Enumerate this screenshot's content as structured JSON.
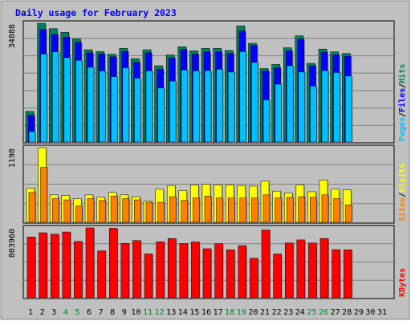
{
  "chart_data": {
    "type": "bar",
    "title": "Daily usage for February 2023",
    "categories": [
      "1",
      "2",
      "3",
      "4",
      "5",
      "6",
      "7",
      "8",
      "9",
      "10",
      "11",
      "12",
      "13",
      "14",
      "15",
      "16",
      "17",
      "18",
      "19",
      "20",
      "21",
      "22",
      "23",
      "24",
      "25",
      "26",
      "27",
      "28",
      "29",
      "30",
      "31"
    ],
    "weekend_days": [
      "4",
      "5",
      "11",
      "12",
      "18",
      "19",
      "25",
      "26"
    ],
    "panels": [
      {
        "id": "top",
        "ymax_label": "34888",
        "ymax": 34888,
        "legend": [
          "Pages",
          "/",
          "Files",
          "/",
          "Hits"
        ],
        "series": [
          {
            "name": "Hits",
            "values": [
              8990,
              34888,
              33300,
              32200,
              30300,
              27100,
              26600,
              25800,
              27500,
              24500,
              27100,
              22400,
              25600,
              28000,
              26800,
              27500,
              27500,
              26900,
              34100,
              29000,
              21600,
              22800,
              27700,
              31200,
              23100,
              27300,
              26500,
              26000,
              null,
              null,
              null
            ]
          },
          {
            "name": "Files",
            "values": [
              7850,
              33100,
              31600,
              30800,
              29300,
              26200,
              25900,
              25000,
              26600,
              23400,
              26200,
              21400,
              24700,
              27200,
              25800,
              26500,
              26500,
              26000,
              32600,
              28400,
              20900,
              21800,
              26800,
              30200,
              22400,
              26400,
              25600,
              25200,
              null,
              null,
              null
            ]
          },
          {
            "name": "Pages",
            "values": [
              3100,
              25900,
              26500,
              24800,
              24000,
              22000,
              20900,
              19200,
              21800,
              18800,
              20900,
              15900,
              17900,
              21200,
              20900,
              21000,
              21400,
              20600,
              26600,
              23400,
              12400,
              17000,
              22400,
              20600,
              16400,
              21000,
              20400,
              19400,
              null,
              null,
              null
            ]
          }
        ]
      },
      {
        "id": "mid",
        "ymax_label": "1198",
        "ymax": 1198,
        "legend": [
          "Sites",
          "/",
          "Visits"
        ],
        "series": [
          {
            "name": "Visits",
            "values": [
              550,
              1198,
              440,
              430,
              380,
              440,
              400,
              480,
              440,
              410,
              340,
              530,
              590,
              510,
              600,
              610,
              600,
              600,
              590,
              580,
              660,
              500,
              470,
              600,
              490,
              680,
              530,
              520,
              null,
              null,
              null
            ]
          },
          {
            "name": "Sites",
            "values": [
              480,
              880,
              380,
              360,
              260,
              380,
              350,
              420,
              380,
              360,
              320,
              320,
              410,
              350,
              390,
              420,
              390,
              390,
              390,
              390,
              440,
              390,
              400,
              410,
              400,
              440,
              380,
              280,
              null,
              null,
              null
            ]
          }
        ]
      },
      {
        "id": "bot",
        "ymax_label": "803960",
        "ymax": 803960,
        "legend": [
          "KBytes"
        ],
        "series": [
          {
            "name": "KBytes",
            "values": [
              700000,
              748000,
              732000,
              757000,
              648000,
              803960,
              540000,
              800000,
              626000,
              658000,
              505000,
              644000,
              682000,
              624000,
              642000,
              564000,
              622000,
              552000,
              600000,
              454000,
              780000,
              504000,
              630000,
              666000,
              630000,
              682000,
              554000,
              552000,
              null,
              null,
              null
            ]
          }
        ]
      }
    ],
    "colors": {
      "background": "#c0c0c0",
      "plot_bg": "#c0c0c0",
      "title_text": "#0000ff",
      "axis_text": "#000000",
      "weekend_text": "#008040",
      "hits": "#00805c",
      "files": "#0000ff",
      "pages": "#00c0ff",
      "visits": "#ffff00",
      "sites": "#ff8000",
      "kbytes": "#ff0000",
      "grid": "#808080",
      "shadow": "#808080"
    }
  }
}
